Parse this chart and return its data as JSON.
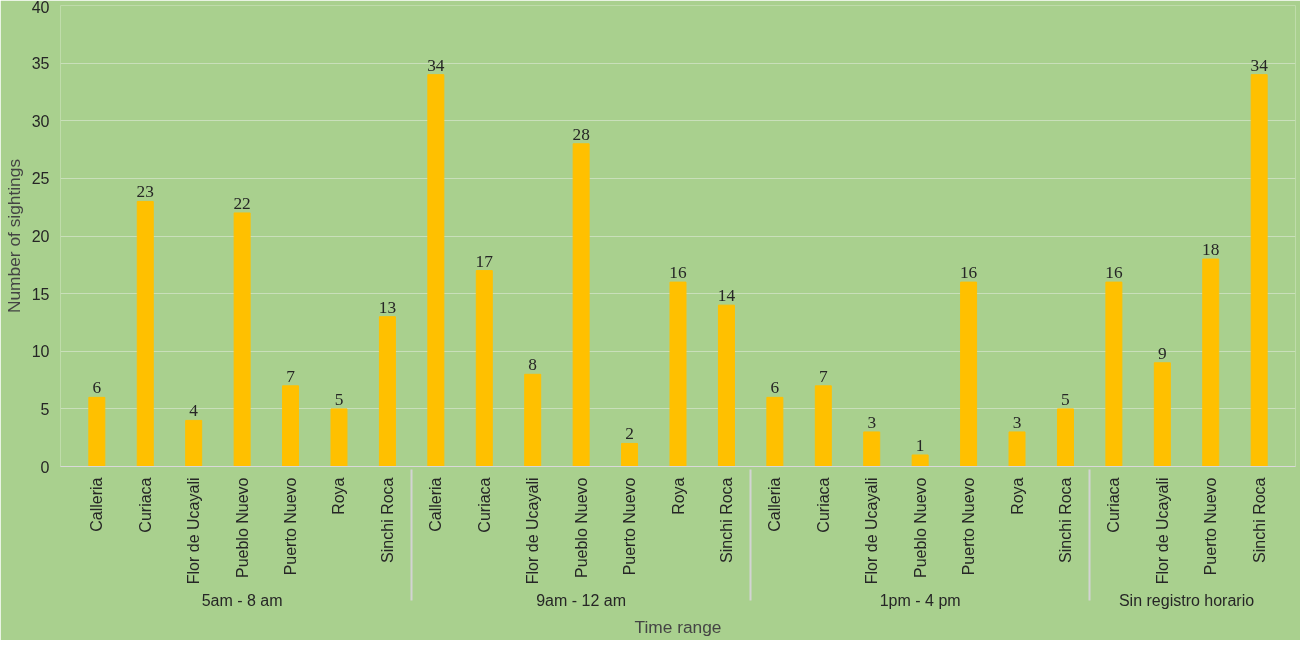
{
  "chart_data": {
    "type": "bar",
    "xlabel": "Time range",
    "ylabel": "Number of sightings",
    "categories": [
      "Calleria",
      "Curiaca",
      "Flor de Ucayali",
      "Pueblo Nuevo",
      "Puerto Nuevo",
      "Roya",
      "Sinchi Roca",
      "Calleria",
      "Curiaca",
      "Flor de Ucayali",
      "Pueblo Nuevo",
      "Puerto Nuevo",
      "Roya",
      "Sinchi Roca",
      "Calleria",
      "Curiaca",
      "Flor de Ucayali",
      "Pueblo Nuevo",
      "Puerto Nuevo",
      "Roya",
      "Sinchi Roca",
      "Curiaca",
      "Flor de Ucayali",
      "Puerto Nuevo",
      "Sinchi Roca"
    ],
    "values": [
      6,
      23,
      4,
      22,
      7,
      5,
      13,
      34,
      17,
      8,
      28,
      2,
      16,
      14,
      6,
      7,
      3,
      1,
      16,
      3,
      5,
      16,
      9,
      18,
      34
    ],
    "color": "#ffc000",
    "annotations": [
      "5am - 8 am",
      "9am - 12 am",
      "1pm - 4 pm",
      "Sin registro horario"
    ],
    "ylim": [
      0,
      40
    ],
    "yticks": [
      0,
      5,
      10,
      15,
      20,
      25,
      30,
      35,
      40
    ],
    "grid": "y",
    "data_labels": true
  }
}
